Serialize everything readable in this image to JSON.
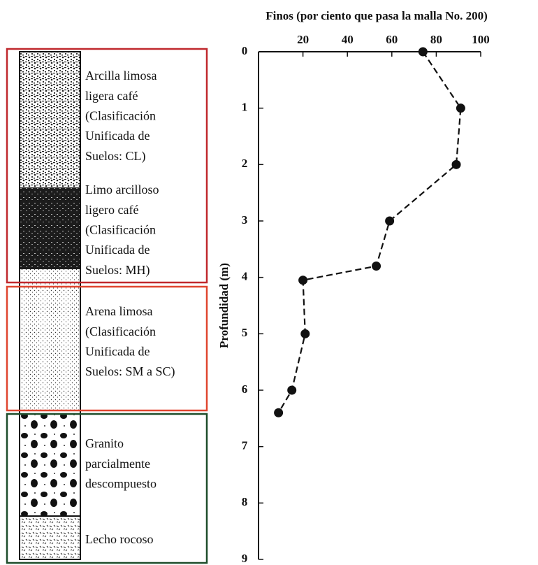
{
  "chart_data": {
    "type": "line",
    "title": "Finos (por ciento que pasa la malla No. 200)",
    "y_label": "Profundidad (m)",
    "x": [
      74,
      91,
      89,
      59,
      53,
      20,
      21,
      15,
      9
    ],
    "values": [
      0,
      1,
      2,
      3,
      3.8,
      4.05,
      5,
      6,
      6.4
    ],
    "color": "#111111",
    "line_style": "dashed",
    "marker": "circle",
    "xlim": [
      0,
      100
    ],
    "xticks": [
      20,
      40,
      60,
      80,
      100
    ],
    "x_axis_position": "top",
    "ylim": [
      0,
      9
    ],
    "yticks": [
      0,
      1,
      2,
      3,
      4,
      5,
      6,
      7,
      8,
      9
    ],
    "y_inverted": true,
    "grid": false
  },
  "soil_column": {
    "layers": [
      {
        "label": [
          "Arcilla limosa",
          "ligera café",
          "(Clasificación",
          "Unificada de",
          "Suelos: CL)"
        ]
      },
      {
        "label": [
          "Limo arcilloso",
          "ligero café",
          "(Clasificación",
          "Unificada de",
          "Suelos: MH)"
        ]
      },
      {
        "label": [
          "Arena limosa",
          "(Clasificación",
          "Unificada de",
          "Suelos: SM a SC)"
        ]
      },
      {
        "label": [
          "Granito",
          "parcialmente",
          "descompuesto"
        ]
      },
      {
        "label": [
          "Lecho rocoso"
        ]
      }
    ]
  }
}
